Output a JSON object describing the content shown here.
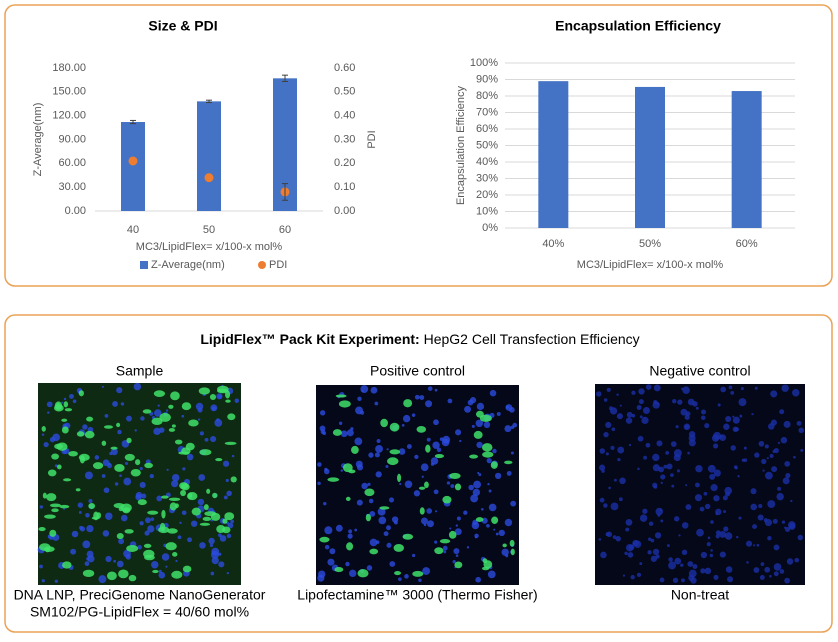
{
  "chart_data": [
    {
      "type": "bar",
      "title": "Size & PDI",
      "categories": [
        "40",
        "50",
        "60"
      ],
      "series": [
        {
          "name": "Z-Average(nm)",
          "type": "bar",
          "color": "#4472c4",
          "values": [
            112,
            138,
            167
          ],
          "errors": [
            2,
            1.5,
            4
          ]
        },
        {
          "name": "PDI",
          "type": "scatter",
          "color": "#ed7d31",
          "axis": "y2",
          "values": [
            0.21,
            0.14,
            0.08
          ],
          "errors": [
            null,
            null,
            0.035
          ]
        }
      ],
      "x_label": "MC3/LipidFlex= x/100-x mol%",
      "y_label": "Z-Average(nm)",
      "y2_label": "PDI",
      "ylim": [
        0,
        180
      ],
      "yticks": [
        {
          "value": 0,
          "label": "0.00"
        },
        {
          "value": 30,
          "label": "30.00"
        },
        {
          "value": 60,
          "label": "60.00"
        },
        {
          "value": 90,
          "label": "90.00"
        },
        {
          "value": 120,
          "label": "120.00"
        },
        {
          "value": 150,
          "label": "150.00"
        },
        {
          "value": 180,
          "label": "180.00"
        }
      ],
      "y2lim": [
        0,
        0.6
      ],
      "y2ticks": [
        {
          "value": 0,
          "label": "0.00"
        },
        {
          "value": 0.1,
          "label": "0.10"
        },
        {
          "value": 0.2,
          "label": "0.20"
        },
        {
          "value": 0.3,
          "label": "0.30"
        },
        {
          "value": 0.4,
          "label": "0.40"
        },
        {
          "value": 0.5,
          "label": "0.50"
        },
        {
          "value": 0.6,
          "label": "0.60"
        }
      ],
      "grid": false,
      "legend": "bottom"
    },
    {
      "type": "bar",
      "title": "Encapsulation Efficiency",
      "categories": [
        "40%",
        "50%",
        "60%"
      ],
      "series": [
        {
          "name": "Encapsulation Efficiency",
          "type": "bar",
          "color": "#4472c4",
          "values": [
            89,
            85.5,
            83
          ]
        }
      ],
      "x_label": "MC3/LipidFlex= x/100-x mol%",
      "y_label": "Encapsulation Efficiency",
      "ylim": [
        0,
        100
      ],
      "yticks": [
        {
          "value": 0,
          "label": "0%"
        },
        {
          "value": 10,
          "label": "10%"
        },
        {
          "value": 20,
          "label": "20%"
        },
        {
          "value": 30,
          "label": "30%"
        },
        {
          "value": 40,
          "label": "40%"
        },
        {
          "value": 50,
          "label": "50%"
        },
        {
          "value": 60,
          "label": "60%"
        },
        {
          "value": 70,
          "label": "70%"
        },
        {
          "value": 80,
          "label": "80%"
        },
        {
          "value": 90,
          "label": "90%"
        },
        {
          "value": 100,
          "label": "100%"
        }
      ],
      "grid": true,
      "legend": "none"
    }
  ],
  "panel": {
    "title_bold": "LipidFlex™ Pack Kit Experiment:",
    "title_rest": "HepG2 Cell Transfection Efficiency",
    "images": [
      {
        "title": "Sample",
        "caption": [
          "DNA LNP, PreciGenome NanoGenerator",
          "SM102/PG-LipidFlex = 40/60 mol%"
        ]
      },
      {
        "title": "Positive control",
        "caption": [
          "Lipofectamine™ 3000 (Thermo Fisher)"
        ]
      },
      {
        "title": "Negative control",
        "caption": [
          "Non-treat"
        ]
      }
    ]
  }
}
